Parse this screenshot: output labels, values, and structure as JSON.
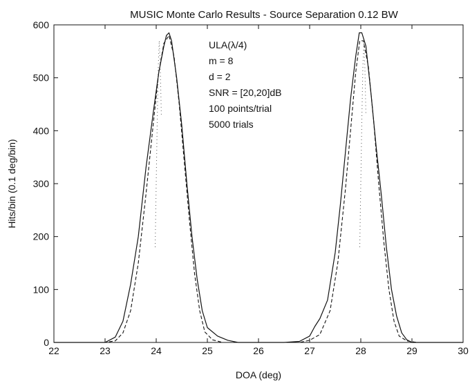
{
  "chart_data": {
    "type": "line",
    "title": "MUSIC Monte Carlo Results - Source Separation 0.12 BW",
    "xlabel": "DOA (deg)",
    "ylabel": "Hits/bin (0.1 deg/bin)",
    "xlim": [
      22,
      30
    ],
    "ylim": [
      0,
      600
    ],
    "xticks": [
      22,
      23,
      24,
      25,
      26,
      27,
      28,
      29,
      30
    ],
    "yticks": [
      0,
      100,
      200,
      300,
      400,
      500,
      600
    ],
    "grid": false,
    "annotations": [
      "ULA(λ/4)",
      "m = 8",
      "d = 2",
      "SNR = [20,20]dB",
      "100 points/trial",
      "5000 trials"
    ],
    "series": [
      {
        "style": "solid",
        "x": [
          22.0,
          23.0,
          23.2,
          23.35,
          23.5,
          23.65,
          23.8,
          23.95,
          24.05,
          24.15,
          24.2,
          24.25,
          24.3,
          24.4,
          24.5,
          24.6,
          24.7,
          24.8,
          24.9,
          25.0,
          25.2,
          25.4,
          25.6,
          26.0,
          26.5,
          26.8,
          27.0,
          27.1,
          27.2,
          27.35,
          27.5,
          27.6,
          27.7,
          27.8,
          27.9,
          27.97,
          28.02,
          28.1,
          28.2,
          28.3,
          28.4,
          28.5,
          28.6,
          28.7,
          28.8,
          28.9,
          29.0,
          29.2,
          30.0
        ],
        "y": [
          0,
          0,
          10,
          40,
          110,
          200,
          330,
          440,
          510,
          560,
          580,
          585,
          570,
          500,
          410,
          300,
          200,
          120,
          60,
          28,
          12,
          4,
          0,
          0,
          0,
          2,
          12,
          30,
          45,
          80,
          170,
          260,
          360,
          460,
          540,
          585,
          585,
          560,
          470,
          370,
          280,
          180,
          100,
          50,
          18,
          5,
          0,
          0,
          0
        ]
      },
      {
        "style": "dashed",
        "x": [
          22.0,
          23.0,
          23.2,
          23.35,
          23.5,
          23.65,
          23.8,
          23.95,
          24.05,
          24.15,
          24.25,
          24.35,
          24.45,
          24.55,
          24.65,
          24.75,
          24.85,
          24.95,
          25.1,
          25.3,
          26.0,
          26.8,
          27.0,
          27.2,
          27.4,
          27.55,
          27.7,
          27.8,
          27.9,
          27.98,
          28.05,
          28.15,
          28.25,
          28.35,
          28.45,
          28.55,
          28.65,
          28.75,
          28.9,
          29.1,
          30.0
        ],
        "y": [
          0,
          0,
          3,
          18,
          60,
          150,
          280,
          420,
          510,
          565,
          580,
          540,
          450,
          340,
          230,
          130,
          60,
          20,
          5,
          0,
          0,
          0,
          4,
          15,
          60,
          150,
          290,
          400,
          510,
          570,
          570,
          520,
          420,
          300,
          190,
          100,
          40,
          12,
          3,
          0,
          0
        ]
      },
      {
        "style": "dotted",
        "x": [
          23.98,
          24.0,
          24.02,
          24.04,
          24.06,
          24.08,
          24.1
        ],
        "y": [
          180,
          300,
          420,
          520,
          570,
          520,
          430
        ]
      },
      {
        "style": "dotted",
        "x": [
          27.98,
          28.0,
          28.02,
          28.04,
          28.06,
          28.08,
          28.1
        ],
        "y": [
          180,
          300,
          420,
          520,
          565,
          520,
          430
        ]
      }
    ]
  }
}
